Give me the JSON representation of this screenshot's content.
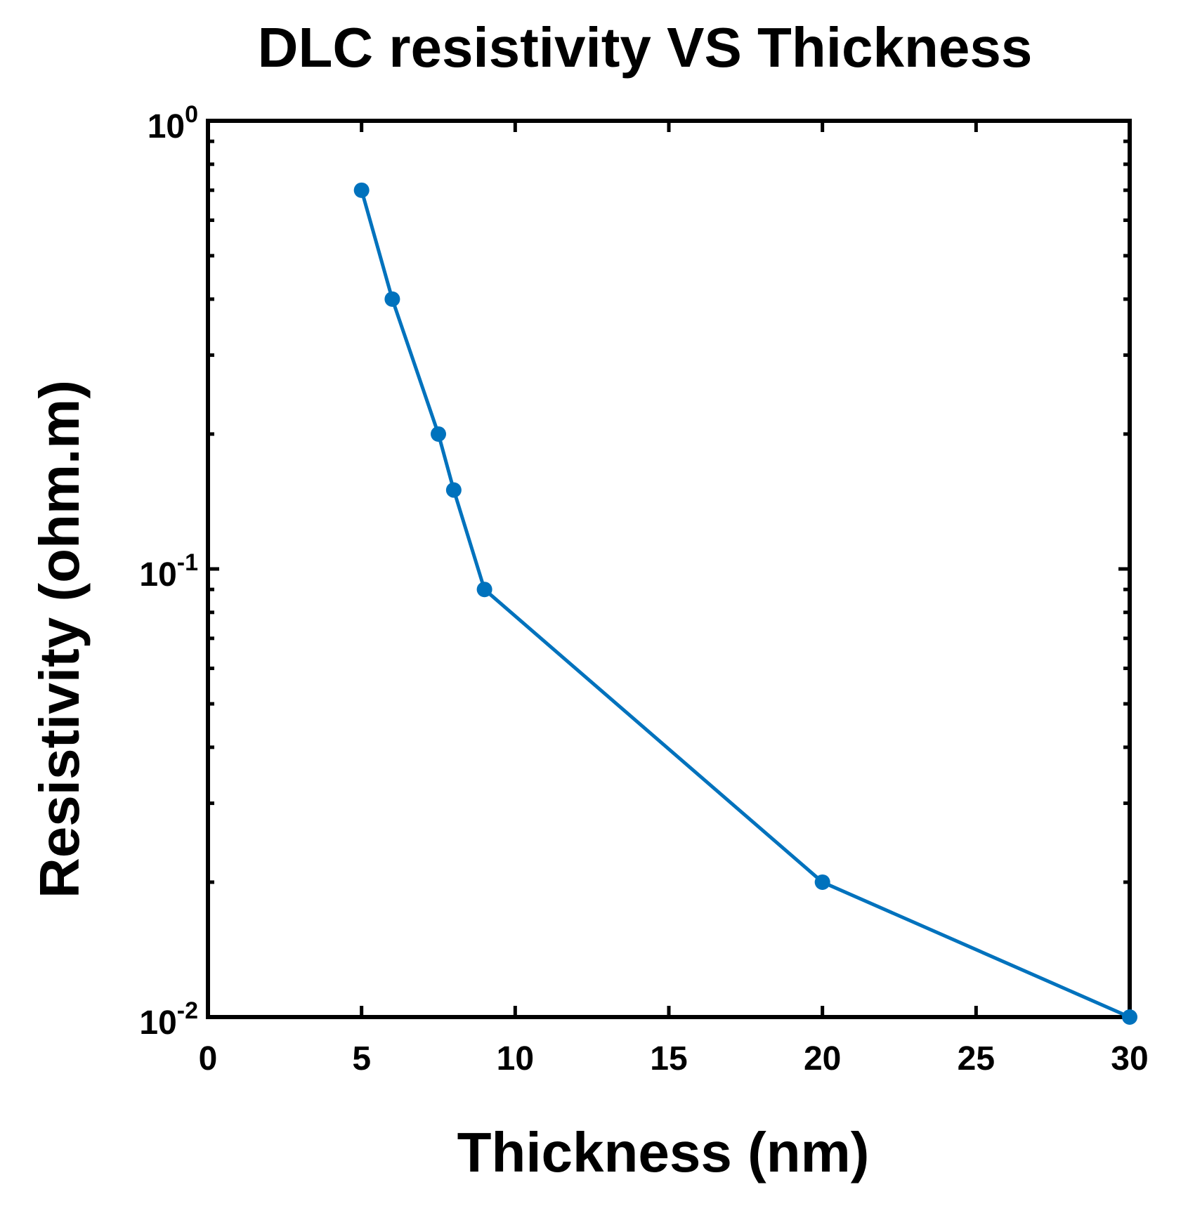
{
  "chart_data": {
    "type": "line",
    "title": "DLC resistivity VS Thickness",
    "xlabel": "Thickness (nm)",
    "ylabel": "Resistivity (ohm.m)",
    "xlim": [
      0,
      30
    ],
    "ylim": [
      0.01,
      1
    ],
    "yscale": "log",
    "grid": false,
    "x_ticks": [
      0,
      5,
      10,
      15,
      20,
      25,
      30
    ],
    "x_tick_labels": [
      "0",
      "5",
      "10",
      "15",
      "20",
      "25",
      "30"
    ],
    "y_ticks": [
      {
        "value": 1,
        "base": "10",
        "exp": "0"
      },
      {
        "value": 0.1,
        "base": "10",
        "exp": "-1"
      },
      {
        "value": 0.01,
        "base": "10",
        "exp": "-2"
      }
    ],
    "series": [
      {
        "name": "DLC resistivity",
        "color": "#0072bd",
        "marker": "circle",
        "x": [
          5,
          6,
          7.5,
          8,
          9,
          20,
          30
        ],
        "y": [
          0.7,
          0.4,
          0.2,
          0.15,
          0.09,
          0.02,
          0.01
        ]
      }
    ]
  }
}
